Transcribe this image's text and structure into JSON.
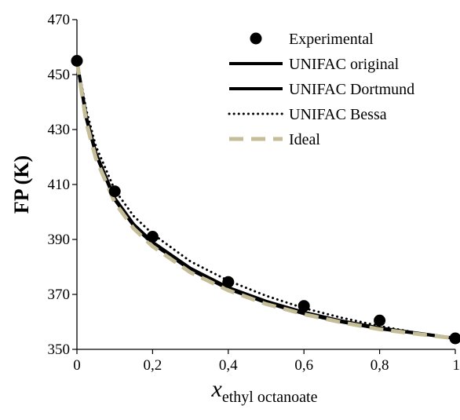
{
  "chart_data": {
    "type": "line",
    "title": "",
    "xlabel_main": "x",
    "xlabel_sub": "ethyl octanoate",
    "ylabel": "FP (K)",
    "xlim": [
      0,
      1
    ],
    "ylim": [
      350,
      470
    ],
    "grid": false,
    "legend_position": "top-right",
    "x_ticks": [
      0,
      0.2,
      0.4,
      0.6,
      0.8,
      1
    ],
    "x_tick_labels": [
      "0",
      "0,2",
      "0,4",
      "0,6",
      "0,8",
      "1"
    ],
    "y_ticks": [
      350,
      370,
      390,
      410,
      430,
      450,
      470
    ],
    "y_tick_labels": [
      "350",
      "370",
      "390",
      "410",
      "430",
      "450",
      "470"
    ],
    "series": [
      {
        "name": "Experimental",
        "style": "markers",
        "color": "#000000",
        "x": [
          0,
          0.1,
          0.2,
          0.4,
          0.6,
          0.8,
          1
        ],
        "y": [
          455.0,
          407.5,
          391.0,
          374.5,
          365.8,
          360.5,
          354.0
        ]
      },
      {
        "name": "UNIFAC original",
        "style": "solid",
        "color": "#000000",
        "x": [
          0,
          0.025,
          0.05,
          0.1,
          0.15,
          0.2,
          0.3,
          0.4,
          0.5,
          0.6,
          0.7,
          0.8,
          0.9,
          1
        ],
        "y": [
          455.0,
          434.0,
          421.0,
          404.5,
          395.0,
          388.5,
          379.0,
          372.0,
          367.0,
          363.0,
          360.0,
          357.5,
          355.8,
          354.0
        ]
      },
      {
        "name": "UNIFAC Dortmund",
        "style": "solid",
        "color": "#000000",
        "x": [
          0,
          0.025,
          0.05,
          0.1,
          0.15,
          0.2,
          0.3,
          0.4,
          0.5,
          0.6,
          0.7,
          0.8,
          0.9,
          1
        ],
        "y": [
          455.0,
          434.5,
          421.5,
          405.0,
          395.5,
          389.0,
          379.5,
          372.5,
          367.5,
          363.5,
          360.3,
          357.8,
          355.9,
          354.0
        ]
      },
      {
        "name": "UNIFAC Bessa",
        "style": "dotted",
        "color": "#000000",
        "x": [
          0,
          0.025,
          0.05,
          0.1,
          0.15,
          0.2,
          0.3,
          0.4,
          0.5,
          0.6,
          0.7,
          0.8,
          0.9,
          1
        ],
        "y": [
          455.0,
          437.0,
          424.0,
          408.0,
          398.5,
          392.0,
          382.0,
          375.0,
          369.5,
          365.0,
          361.5,
          358.5,
          356.0,
          354.0
        ]
      },
      {
        "name": "Ideal",
        "style": "dashed",
        "color": "#c4bd97",
        "x": [
          0,
          0.025,
          0.05,
          0.1,
          0.15,
          0.2,
          0.3,
          0.4,
          0.5,
          0.6,
          0.7,
          0.8,
          0.9,
          1
        ],
        "y": [
          455.0,
          432.5,
          419.5,
          403.5,
          394.0,
          387.5,
          378.0,
          371.5,
          366.5,
          362.8,
          359.8,
          357.3,
          355.6,
          354.0
        ]
      }
    ]
  }
}
